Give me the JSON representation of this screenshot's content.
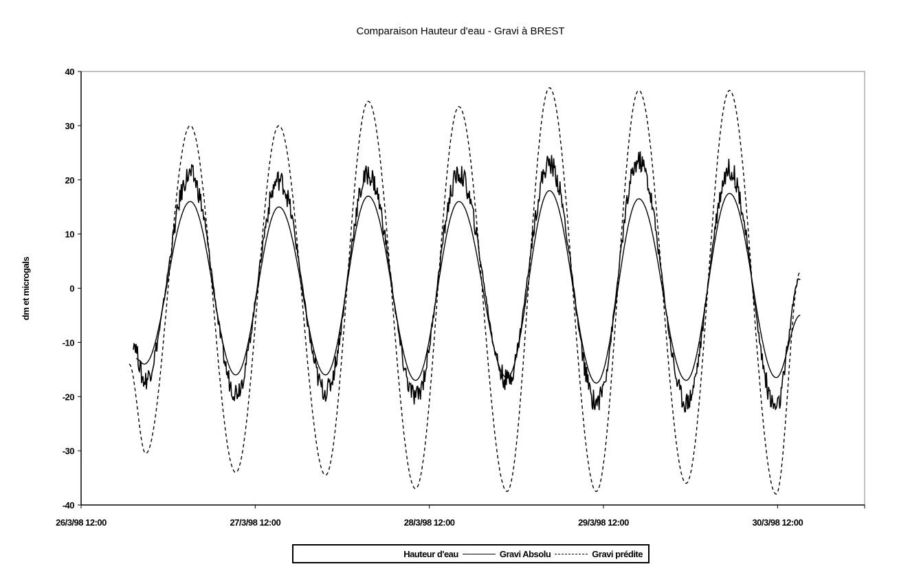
{
  "chart_data": {
    "type": "line",
    "title": "Comparaison Hauteur d'eau - Gravi à BREST",
    "xlabel": "",
    "ylabel": "dm et microgals",
    "x_unit": "days since 26/3/98 12:00",
    "xlim": [
      0,
      4.5
    ],
    "ylim": [
      -40,
      40
    ],
    "yticks": [
      40,
      30,
      20,
      10,
      0,
      -10,
      -20,
      -30,
      -40
    ],
    "xticks": [
      {
        "value": 0,
        "label": "26/3/98 12:00"
      },
      {
        "value": 1,
        "label": "27/3/98 12:00"
      },
      {
        "value": 2,
        "label": "28/3/98 12:00"
      },
      {
        "value": 3,
        "label": "29/3/98 12:00"
      },
      {
        "value": 4,
        "label": "30/3/98 12:00"
      }
    ],
    "grid": false,
    "legend_position": "bottom",
    "series": [
      {
        "name": "Hauteur d'eau",
        "style": "solid",
        "noisy": false,
        "x": [
          0.316,
          0.363,
          0.627,
          0.888,
          1.136,
          1.404,
          1.649,
          1.921,
          2.17,
          2.446,
          2.69,
          2.959,
          3.203,
          3.475,
          3.724,
          3.992,
          4.13
        ],
        "y": [
          -13,
          -14,
          16,
          -16,
          15,
          -16,
          17,
          -17,
          16,
          -16.5,
          18,
          -17.5,
          16.5,
          -17,
          17.5,
          -16.5,
          -5
        ]
      },
      {
        "name": "Gravi Absolu",
        "style": "solid",
        "noisy": true,
        "x": [
          0.3,
          0.363,
          0.627,
          0.888,
          1.136,
          1.404,
          1.649,
          1.921,
          2.17,
          2.446,
          2.69,
          2.959,
          3.203,
          3.475,
          3.724,
          3.992,
          4.13
        ],
        "y": [
          -10,
          -17,
          21,
          -19,
          20,
          -19,
          21,
          -20,
          21,
          -17,
          23,
          -21,
          23.5,
          -21,
          22,
          -22,
          2
        ]
      },
      {
        "name": "Gravi prédite",
        "style": "dashed",
        "noisy": false,
        "x": [
          0.276,
          0.371,
          0.627,
          0.888,
          1.136,
          1.404,
          1.649,
          1.921,
          2.17,
          2.446,
          2.69,
          2.959,
          3.203,
          3.475,
          3.724,
          3.992,
          4.13
        ],
        "y": [
          -14,
          -30.5,
          30,
          -34,
          30,
          -34.5,
          34.5,
          -37,
          33.5,
          -37.5,
          37,
          -37.5,
          36.5,
          -36,
          36.5,
          -38,
          3
        ]
      }
    ]
  }
}
